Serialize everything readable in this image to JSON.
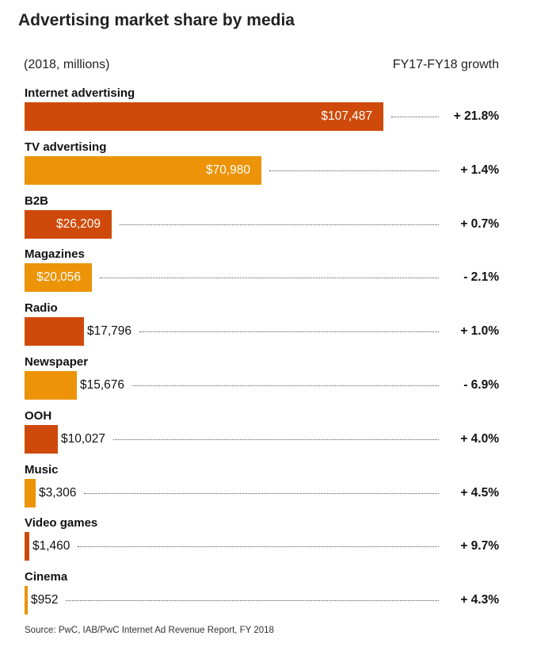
{
  "colors": {
    "dark": "#cf4a0a",
    "light": "#ec9307"
  },
  "title": "Advertising market share by media",
  "subtitle": "(2018, millions)",
  "growth_header": "FY17-FY18 growth",
  "source": "Source: PwC, IAB/PwC Internet Ad Revenue Report, FY 2018",
  "chart_data": {
    "type": "bar",
    "orientation": "horizontal",
    "title": "Advertising market share by media",
    "subtitle": "(2018, millions)",
    "xlim": [
      0,
      107487
    ],
    "categories": [
      "Internet advertising",
      "TV advertising",
      "B2B",
      "Magazines",
      "Radio",
      "Newspaper",
      "OOH",
      "Music",
      "Video games",
      "Cinema"
    ],
    "values": [
      107487,
      70980,
      26209,
      20056,
      17796,
      15676,
      10027,
      3306,
      1460,
      952
    ],
    "value_labels": [
      "$107,487",
      "$70,980",
      "$26,209",
      "$20,056",
      "$17,796",
      "$15,676",
      "$10,027",
      "$3,306",
      "$1,460",
      "$952"
    ],
    "growth": [
      21.8,
      1.4,
      0.7,
      -2.1,
      1.0,
      -6.9,
      4.0,
      4.5,
      9.7,
      4.3
    ],
    "growth_labels": [
      "+ 21.8%",
      "+ 1.4%",
      "+ 0.7%",
      "- 2.1%",
      "+ 1.0%",
      "- 6.9%",
      "+ 4.0%",
      "+ 4.5%",
      "+ 9.7%",
      "+ 4.3%"
    ],
    "bar_colors": [
      "dark",
      "light",
      "dark",
      "light",
      "dark",
      "light",
      "dark",
      "light",
      "dark",
      "light"
    ],
    "grid": false,
    "legend": "none"
  }
}
